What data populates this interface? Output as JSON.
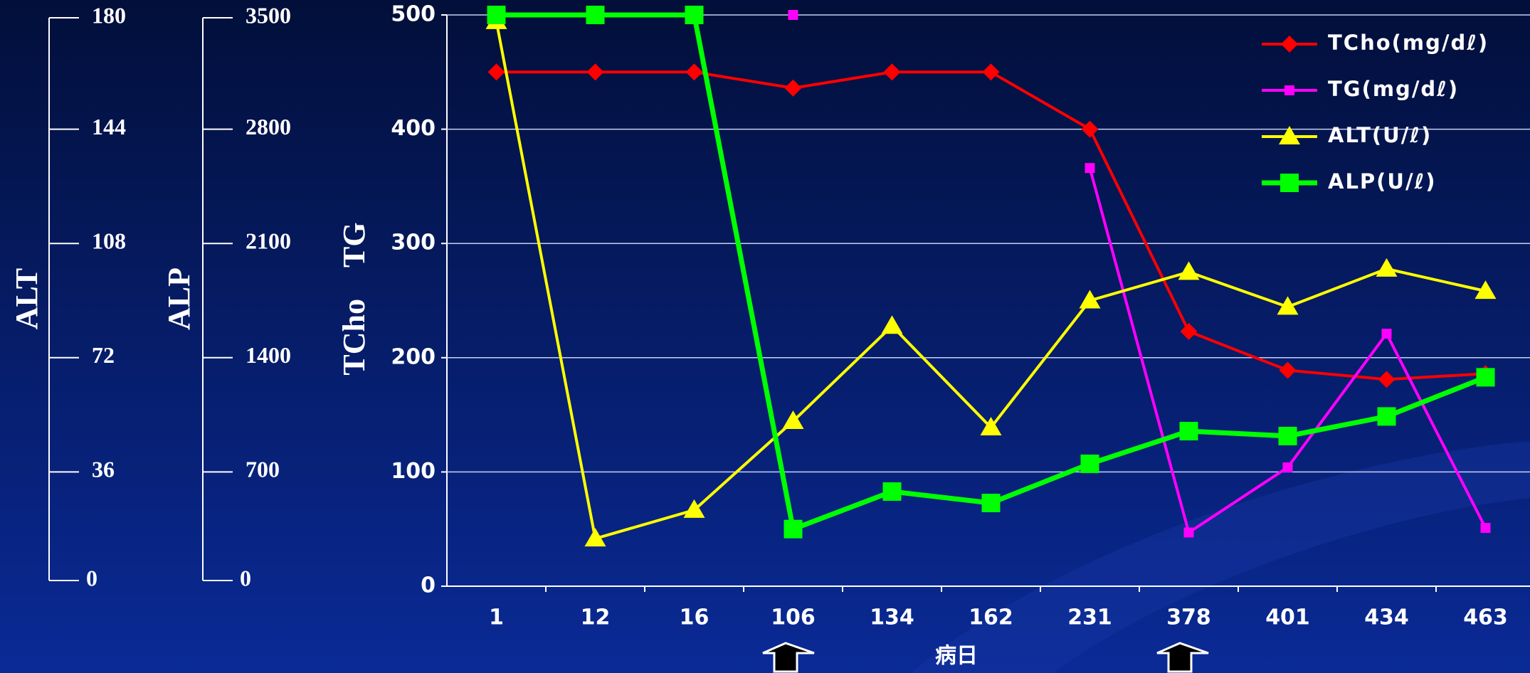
{
  "chart_data": {
    "type": "line",
    "categories": [
      "1",
      "12",
      "16",
      "106",
      "134",
      "162",
      "231",
      "378",
      "401",
      "434",
      "463"
    ],
    "x_label": "病日",
    "y_label": "TCho　TG",
    "ylim": [
      0,
      500
    ],
    "yticks": [
      0,
      100,
      200,
      300,
      400,
      500
    ],
    "y2_label": "ALT",
    "y2lim": [
      0,
      180
    ],
    "y2ticks": [
      0,
      36,
      72,
      108,
      144,
      180
    ],
    "y3_label": "ALP",
    "y3lim": [
      0,
      3500
    ],
    "y3ticks": [
      0,
      700,
      1400,
      2100,
      2800,
      3500
    ],
    "grid": true,
    "legend": "upper right",
    "series": [
      {
        "name": "TCho(mg/dℓ)",
        "color": "#ff0000",
        "marker": "diamond",
        "axis": "y",
        "values": [
          450,
          450,
          450,
          436,
          450,
          450,
          400,
          223,
          189,
          181,
          186
        ]
      },
      {
        "name": "TG(mg/dℓ)",
        "color": "#ff00ff",
        "marker": "small-square",
        "axis": "y",
        "values": [
          null,
          null,
          null,
          500,
          null,
          null,
          366,
          47,
          104,
          221,
          51
        ]
      },
      {
        "name": "ALT(U/ℓ)",
        "color": "#ffff00",
        "marker": "triangle",
        "axis": "y2",
        "values": [
          178,
          15,
          24,
          52,
          82,
          50,
          90,
          99,
          88,
          100,
          93
        ]
      },
      {
        "name": "ALP(U/ℓ)",
        "color": "#00ff00",
        "marker": "square",
        "axis": "y3",
        "values": [
          3500,
          3500,
          3500,
          350,
          580,
          510,
          750,
          950,
          920,
          1040,
          1280
        ]
      }
    ]
  }
}
